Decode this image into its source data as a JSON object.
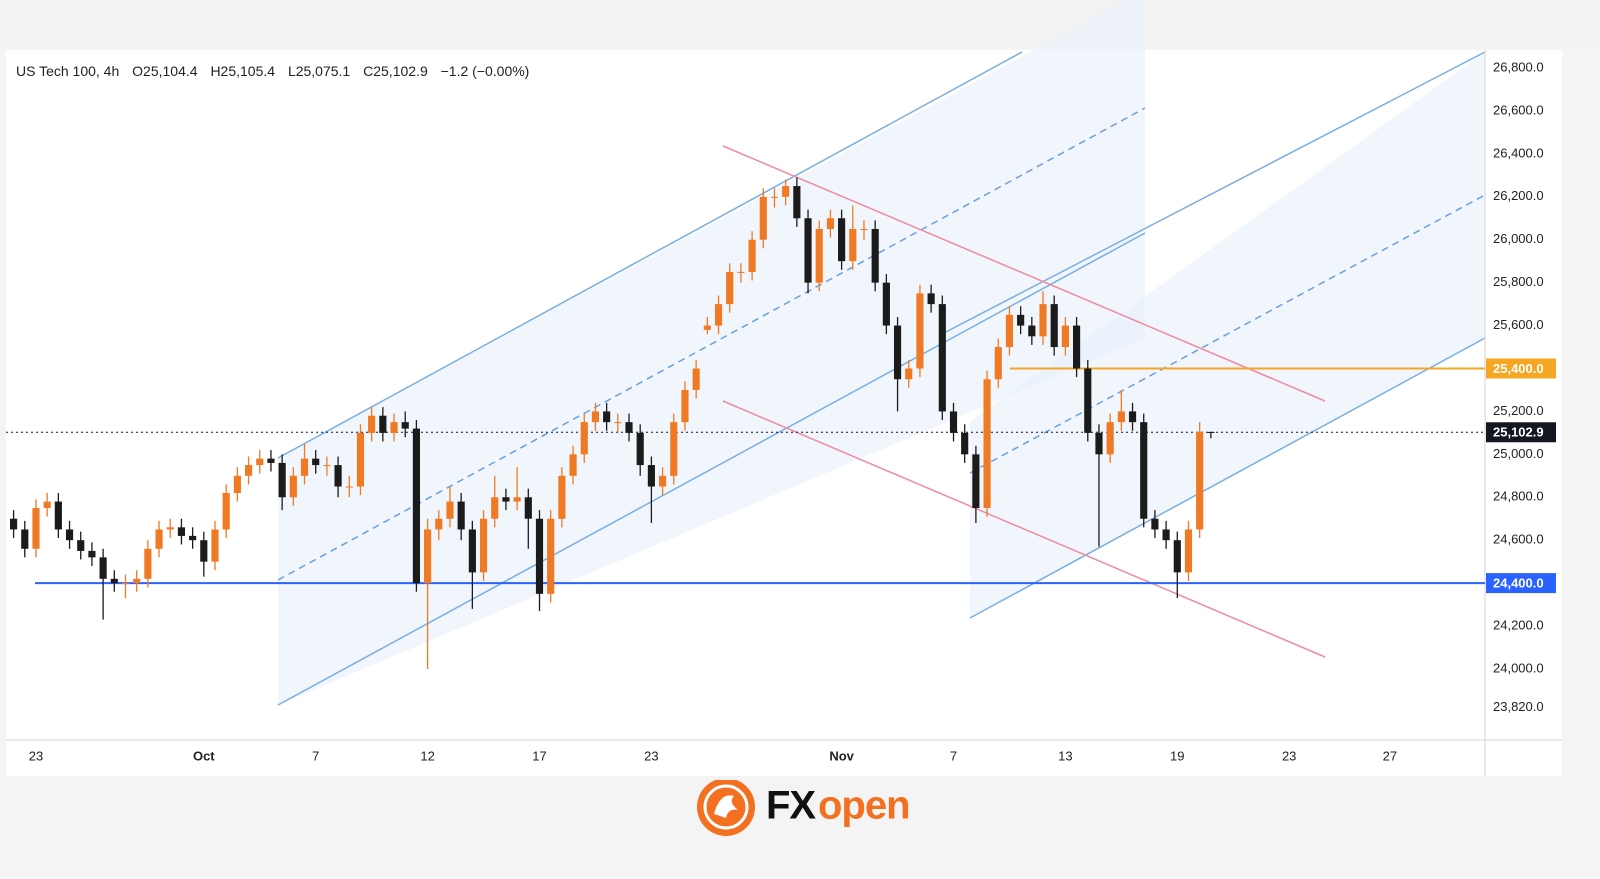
{
  "chart_data": {
    "type": "candlestick",
    "title": "US Tech 100, 4h",
    "ohlc_labels": [
      "O25,104.4",
      "H25,105.4",
      "L25,075.1",
      "C25,102.9",
      "−1.2 (−0.00%)"
    ],
    "up_color": "#f07a23",
    "down_color": "#1b1b1b",
    "categories": [
      null,
      null,
      "23",
      null,
      null,
      null,
      null,
      null,
      null,
      null,
      null,
      null,
      null,
      null,
      null,
      null,
      null,
      "Oct",
      null,
      null,
      null,
      null,
      null,
      null,
      null,
      null,
      null,
      "7",
      null,
      null,
      null,
      null,
      null,
      null,
      null,
      null,
      null,
      "12",
      null,
      null,
      null,
      null,
      null,
      null,
      null,
      null,
      null,
      "17",
      null,
      null,
      null,
      null,
      null,
      null,
      null,
      null,
      null,
      "23",
      null,
      null,
      null,
      null,
      null,
      null,
      null,
      null,
      null,
      null,
      null,
      null,
      null,
      null,
      null,
      null,
      "Nov",
      null,
      null,
      null,
      null,
      null,
      null,
      null,
      null,
      null,
      "7",
      null,
      null,
      null,
      null,
      null,
      null,
      null,
      null,
      null,
      "13",
      null,
      null,
      null,
      null,
      null,
      null,
      null,
      null,
      null,
      "19",
      null,
      null,
      null,
      null,
      null,
      null,
      null,
      null,
      null,
      "23",
      null,
      null,
      null,
      null,
      null,
      null,
      null,
      null,
      "27",
      null,
      null,
      null,
      null,
      null,
      null,
      null,
      null
    ],
    "open": [
      24700,
      24650,
      24560,
      24750,
      24780,
      24650,
      24600,
      24550,
      24520,
      24420,
      24400,
      24400,
      24420,
      24560,
      24650,
      24660,
      24620,
      24600,
      24500,
      24650,
      24820,
      24900,
      24950,
      24980,
      24960,
      24800,
      24900,
      24980,
      24950,
      24950,
      24850,
      24850,
      25100,
      25180,
      25100,
      25150,
      25120,
      24400,
      24650,
      24700,
      24780,
      24650,
      24450,
      24700,
      24800,
      24780,
      24800,
      24700,
      24350,
      24700,
      24900,
      25000,
      25150,
      25200,
      25150,
      25150,
      25100,
      24950,
      24850,
      24900,
      25150,
      25300,
      25580,
      25600,
      25700,
      25850,
      25850,
      26000,
      26200,
      26200,
      26250,
      26100,
      25800,
      26050,
      26100,
      25900,
      26050,
      26050,
      25800,
      25600,
      25350,
      25400,
      25750,
      25700,
      25200,
      25100,
      25000,
      24750,
      25350,
      25500,
      25650,
      25600,
      25550,
      25700,
      25500,
      25600,
      25400,
      25100,
      25000,
      25150,
      25200,
      25150,
      24700,
      24650,
      24600,
      24450,
      24650,
      25104.4,
      null,
      null,
      null,
      null,
      null,
      null,
      null,
      null,
      null,
      null,
      null,
      null,
      null,
      null,
      null,
      null,
      null,
      null,
      null,
      null,
      null,
      null,
      null,
      null
    ],
    "high": [
      24740,
      24690,
      24790,
      24820,
      24820,
      24690,
      24640,
      24590,
      24560,
      24460,
      24440,
      24460,
      24600,
      24690,
      24700,
      24700,
      24660,
      24640,
      24690,
      24860,
      24940,
      24990,
      25020,
      25020,
      25000,
      24940,
      25050,
      25020,
      24990,
      24990,
      24900,
      25140,
      25220,
      25220,
      25190,
      25200,
      25160,
      24700,
      24740,
      24850,
      24820,
      24690,
      24740,
      24900,
      24840,
      24940,
      24840,
      24740,
      24740,
      24940,
      25040,
      25190,
      25240,
      25240,
      25190,
      25190,
      25140,
      24990,
      24940,
      25190,
      25340,
      25440,
      25640,
      25740,
      25890,
      25890,
      26040,
      26240,
      26240,
      26280,
      26290,
      26140,
      26090,
      26140,
      26140,
      26160,
      26090,
      26090,
      25840,
      25640,
      25440,
      25790,
      25790,
      25740,
      25240,
      25140,
      25040,
      25390,
      25540,
      25690,
      25690,
      25640,
      25760,
      25740,
      25640,
      25640,
      25440,
      25140,
      25190,
      25300,
      25240,
      25190,
      24740,
      24690,
      24640,
      24690,
      25150,
      25105.4,
      null,
      null,
      null,
      null,
      null,
      null,
      null,
      null,
      null,
      null,
      null,
      null,
      null,
      null,
      null,
      null,
      null,
      null,
      null,
      null,
      null,
      null,
      null,
      null
    ],
    "low": [
      24610,
      24520,
      24520,
      24710,
      24610,
      24560,
      24510,
      24480,
      24230,
      24360,
      24330,
      24360,
      24380,
      24520,
      24610,
      24580,
      24560,
      24430,
      24460,
      24610,
      24780,
      24860,
      24910,
      24920,
      24740,
      24760,
      24860,
      24910,
      24900,
      24800,
      24800,
      24810,
      25060,
      25060,
      25060,
      25080,
      24360,
      24000,
      24600,
      24660,
      24600,
      24280,
      24410,
      24660,
      24740,
      24740,
      24560,
      24270,
      24310,
      24660,
      24860,
      24960,
      25110,
      25110,
      25100,
      25060,
      24900,
      24680,
      24810,
      24860,
      25110,
      25260,
      25560,
      25560,
      25660,
      25800,
      25810,
      25960,
      26150,
      26160,
      26060,
      25750,
      25760,
      26010,
      25860,
      25860,
      26000,
      25760,
      25560,
      25200,
      25310,
      25360,
      25660,
      25160,
      25060,
      24960,
      24680,
      24710,
      25310,
      25460,
      25560,
      25510,
      25510,
      25460,
      25460,
      25360,
      25060,
      24570,
      24960,
      25110,
      25110,
      24660,
      24610,
      24560,
      24330,
      24410,
      24610,
      25075.1,
      null,
      null,
      null,
      null,
      null,
      null,
      null,
      null,
      null,
      null,
      null,
      null,
      null,
      null,
      null,
      null,
      null,
      null,
      null,
      null,
      null,
      null,
      null,
      null
    ],
    "close": [
      24650,
      24560,
      24750,
      24780,
      24650,
      24600,
      24550,
      24520,
      24420,
      24400,
      24400,
      24420,
      24560,
      24650,
      24660,
      24620,
      24600,
      24500,
      24650,
      24820,
      24900,
      24950,
      24980,
      24960,
      24800,
      24900,
      24980,
      24950,
      24950,
      24850,
      24850,
      25100,
      25180,
      25100,
      25150,
      25120,
      24400,
      24650,
      24700,
      24780,
      24650,
      24450,
      24700,
      24800,
      24780,
      24800,
      24700,
      24350,
      24700,
      24900,
      25000,
      25150,
      25200,
      25150,
      25150,
      25100,
      24950,
      24850,
      24900,
      25150,
      25300,
      25400,
      25600,
      25700,
      25850,
      25850,
      26000,
      26200,
      26200,
      26250,
      26100,
      25800,
      26050,
      26100,
      25900,
      26050,
      26050,
      25800,
      25600,
      25350,
      25400,
      25750,
      25700,
      25200,
      25100,
      25000,
      24750,
      25350,
      25500,
      25650,
      25600,
      25550,
      25700,
      25500,
      25600,
      25400,
      25100,
      25000,
      25150,
      25200,
      25150,
      24700,
      24650,
      24600,
      24450,
      24650,
      25104.4,
      25102.9,
      null,
      null,
      null,
      null,
      null,
      null,
      null,
      null,
      null,
      null,
      null,
      null,
      null,
      null,
      null,
      null,
      null,
      null,
      null,
      null,
      null,
      null,
      null,
      null
    ],
    "ylim": [
      23669,
      26884
    ],
    "yticks": [
      {
        "value": 26800,
        "label": "26,800.0"
      },
      {
        "value": 26600,
        "label": "26,600.0"
      },
      {
        "value": 26400,
        "label": "26,400.0"
      },
      {
        "value": 26200,
        "label": "26,200.0"
      },
      {
        "value": 26000,
        "label": "26,000.0"
      },
      {
        "value": 25800,
        "label": "25,800.0"
      },
      {
        "value": 25600,
        "label": "25,600.0"
      },
      {
        "value": 25200,
        "label": "25,200.0"
      },
      {
        "value": 25000,
        "label": "25,000.0"
      },
      {
        "value": 24800,
        "label": "24,800.0"
      },
      {
        "value": 24600,
        "label": "24,600.0"
      },
      {
        "value": 24200,
        "label": "24,200.0"
      },
      {
        "value": 24000,
        "label": "24,000.0"
      },
      {
        "value": 23820,
        "label": "23,820.0"
      }
    ],
    "levels": [
      {
        "value": 25400,
        "label": "25,400.0",
        "color": "#f5a623",
        "style": "solid"
      },
      {
        "value": 24400,
        "label": "24,400.0",
        "color": "#2962ff",
        "style": "solid"
      },
      {
        "value": 25102.9,
        "label": "25,102.9",
        "color": "#131722",
        "style": "dotted"
      }
    ]
  },
  "brand": {
    "prefix": "FX",
    "suffix": "open"
  }
}
